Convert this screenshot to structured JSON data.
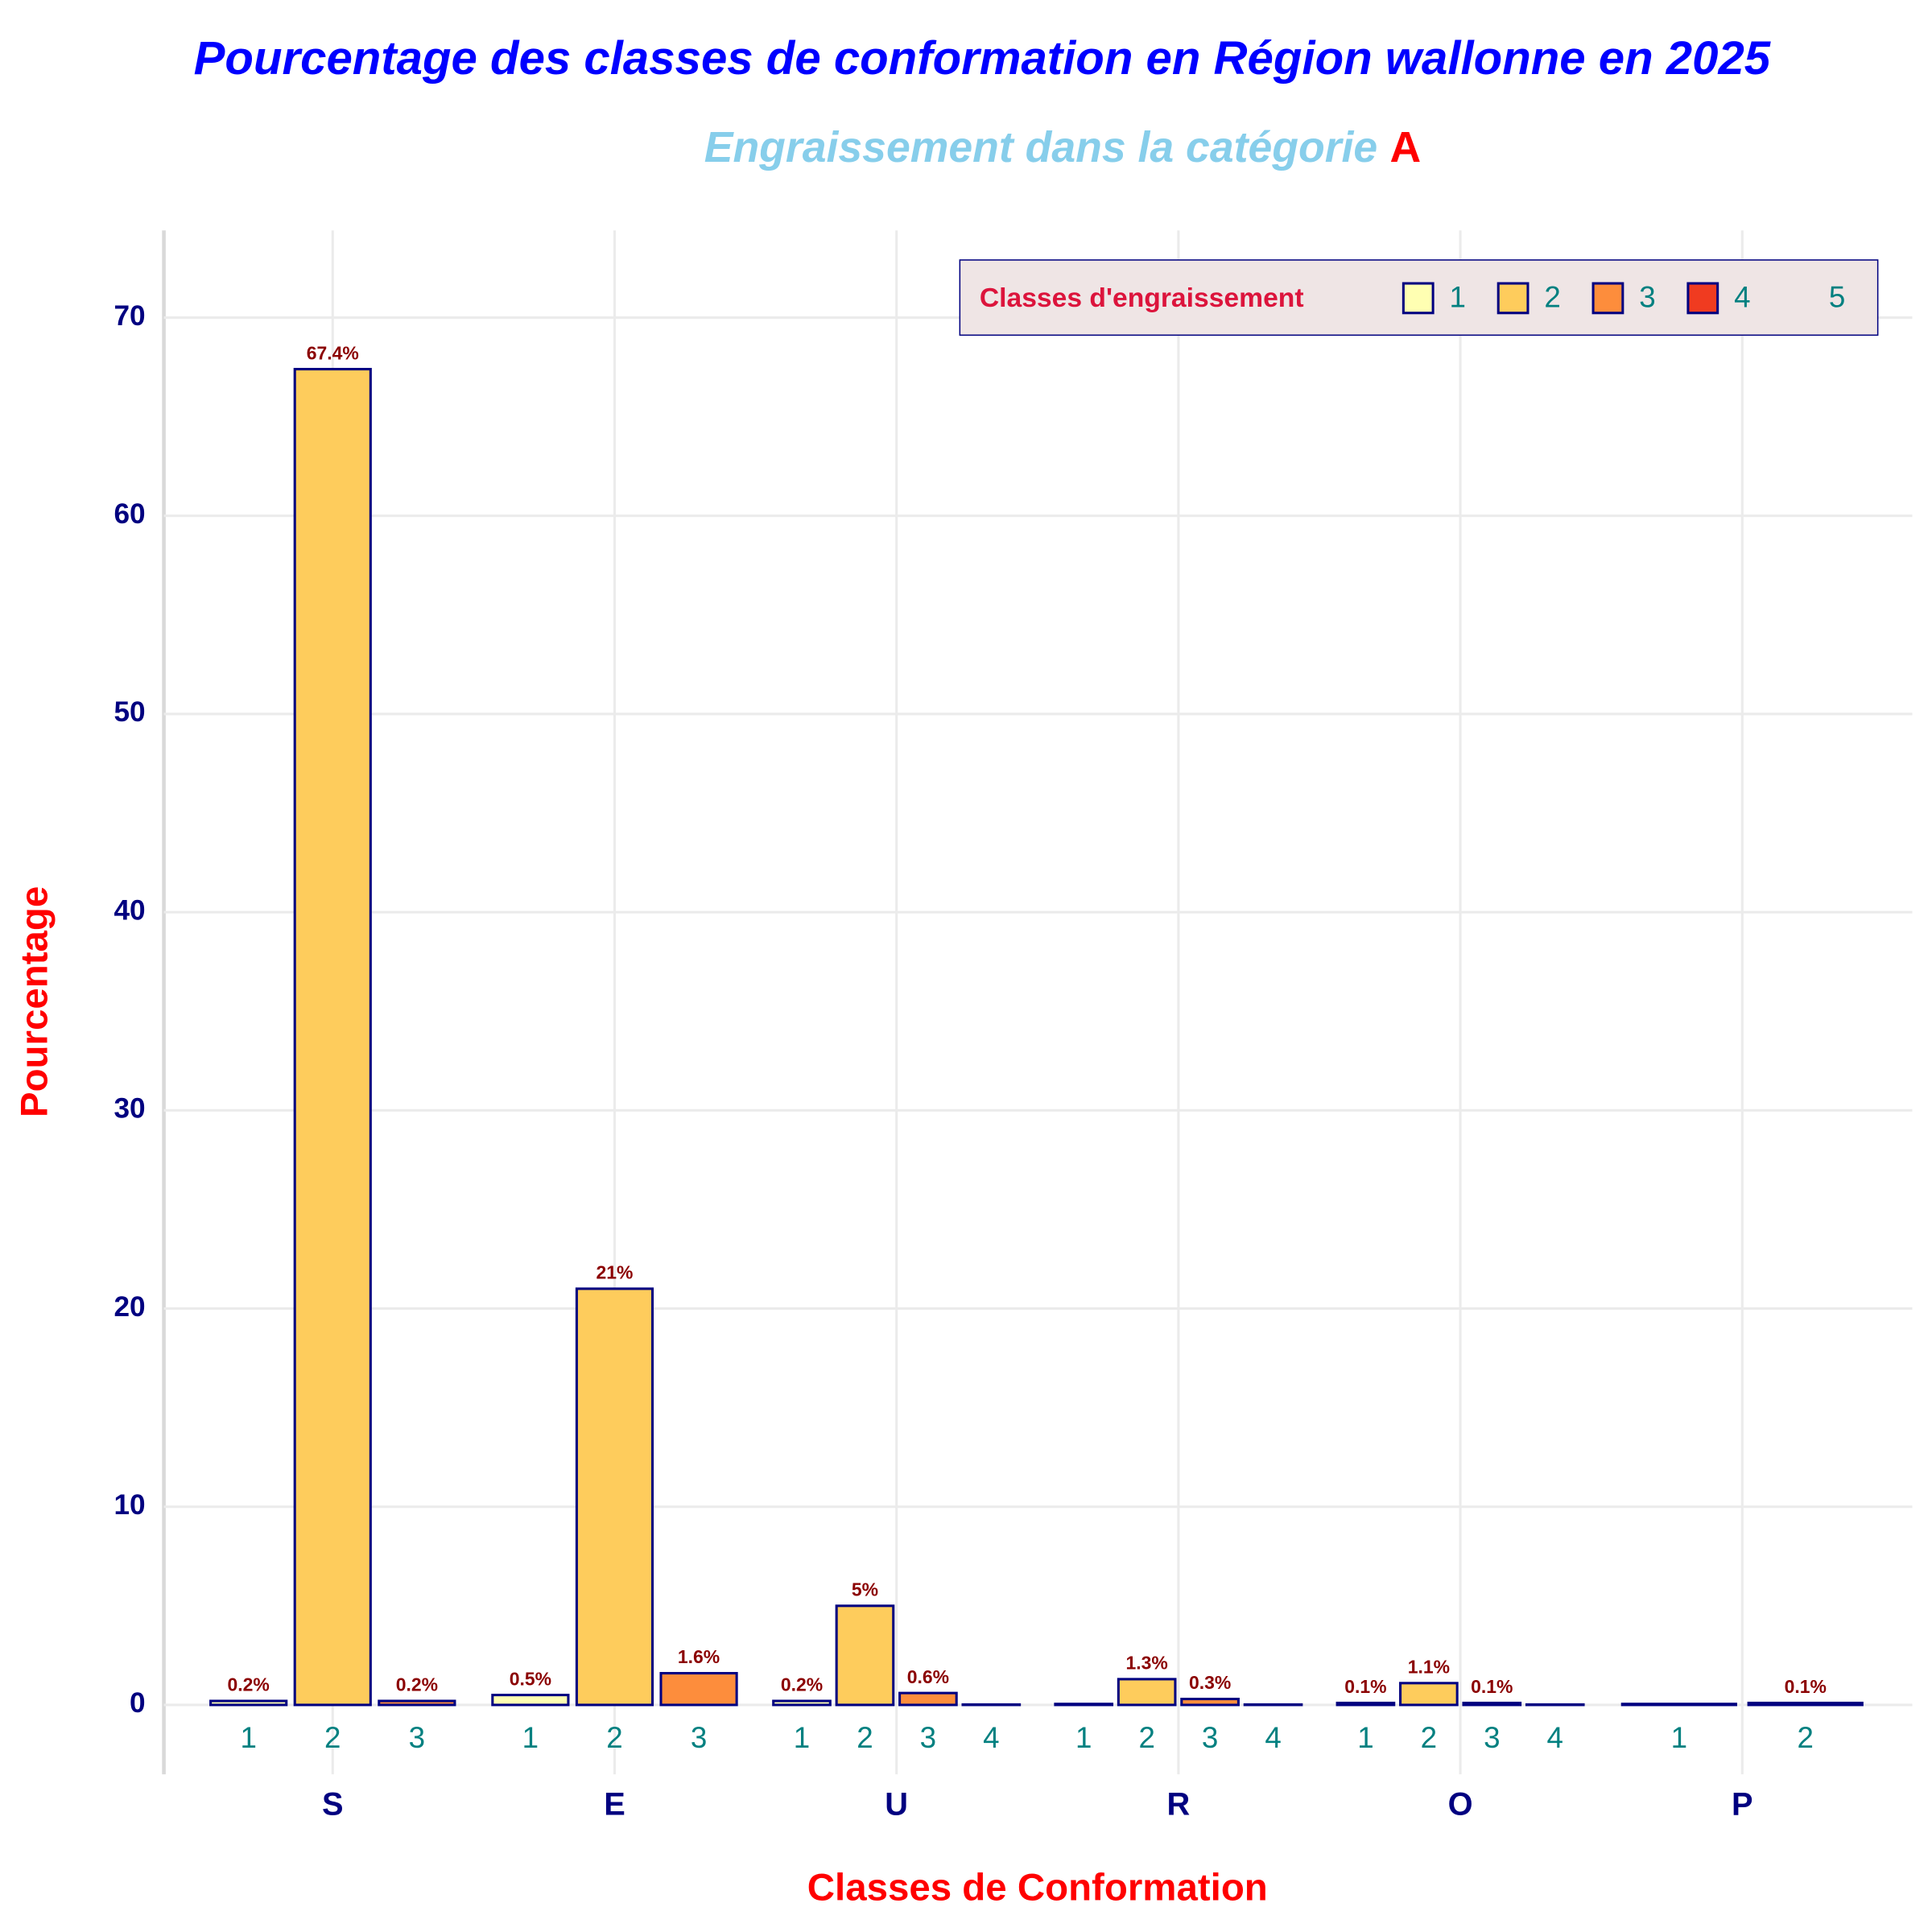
{
  "chart_data": {
    "type": "grouped-bar",
    "title": "Pourcentage des classes de conformation en Région wallonne en 2025",
    "subtitle": "Engraissement dans la catégorie",
    "subtitle_highlight": "A",
    "x_label": "Classes de Conformation",
    "y_label": "Pourcentage",
    "ylim": [
      -3.5,
      74.4
    ],
    "yticks": [
      0,
      10,
      20,
      30,
      40,
      50,
      60,
      70
    ],
    "grid": true,
    "legend": {
      "title": "Classes d'engraissement",
      "position": "top-right",
      "entries": [
        {
          "name": "1",
          "color": "#ffffb2"
        },
        {
          "name": "2",
          "color": "#fecc5c"
        },
        {
          "name": "3",
          "color": "#fd8d3c"
        },
        {
          "name": "4",
          "color": "#f03b20"
        },
        {
          "name": "5"
        }
      ]
    },
    "groups": [
      {
        "category": "S",
        "subcategories": [
          "1",
          "2",
          "3"
        ],
        "values": [
          0.2,
          67.4,
          0.2
        ],
        "value_labels": [
          "0.2%",
          "67.4%",
          "0.2%"
        ]
      },
      {
        "category": "E",
        "subcategories": [
          "1",
          "2",
          "3"
        ],
        "values": [
          0.5,
          21,
          1.6
        ],
        "value_labels": [
          "0.5%",
          "21%",
          "1.6%"
        ]
      },
      {
        "category": "U",
        "subcategories": [
          "1",
          "2",
          "3",
          "4"
        ],
        "values": [
          0.2,
          5,
          0.6,
          0.02
        ],
        "value_labels": [
          "0.2%",
          "5%",
          "0.6%",
          null
        ]
      },
      {
        "category": "R",
        "subcategories": [
          "1",
          "2",
          "3",
          "4"
        ],
        "values": [
          0.05,
          1.3,
          0.3,
          0.02
        ],
        "value_labels": [
          null,
          "1.3%",
          "0.3%",
          null
        ]
      },
      {
        "category": "O",
        "subcategories": [
          "1",
          "2",
          "3",
          "4"
        ],
        "values": [
          0.1,
          1.1,
          0.1,
          0.02
        ],
        "value_labels": [
          "0.1%",
          "1.1%",
          "0.1%",
          null
        ]
      },
      {
        "category": "P",
        "subcategories": [
          "1",
          "2"
        ],
        "values": [
          0.05,
          0.1
        ],
        "value_labels": [
          null,
          "0.1%"
        ]
      }
    ]
  }
}
